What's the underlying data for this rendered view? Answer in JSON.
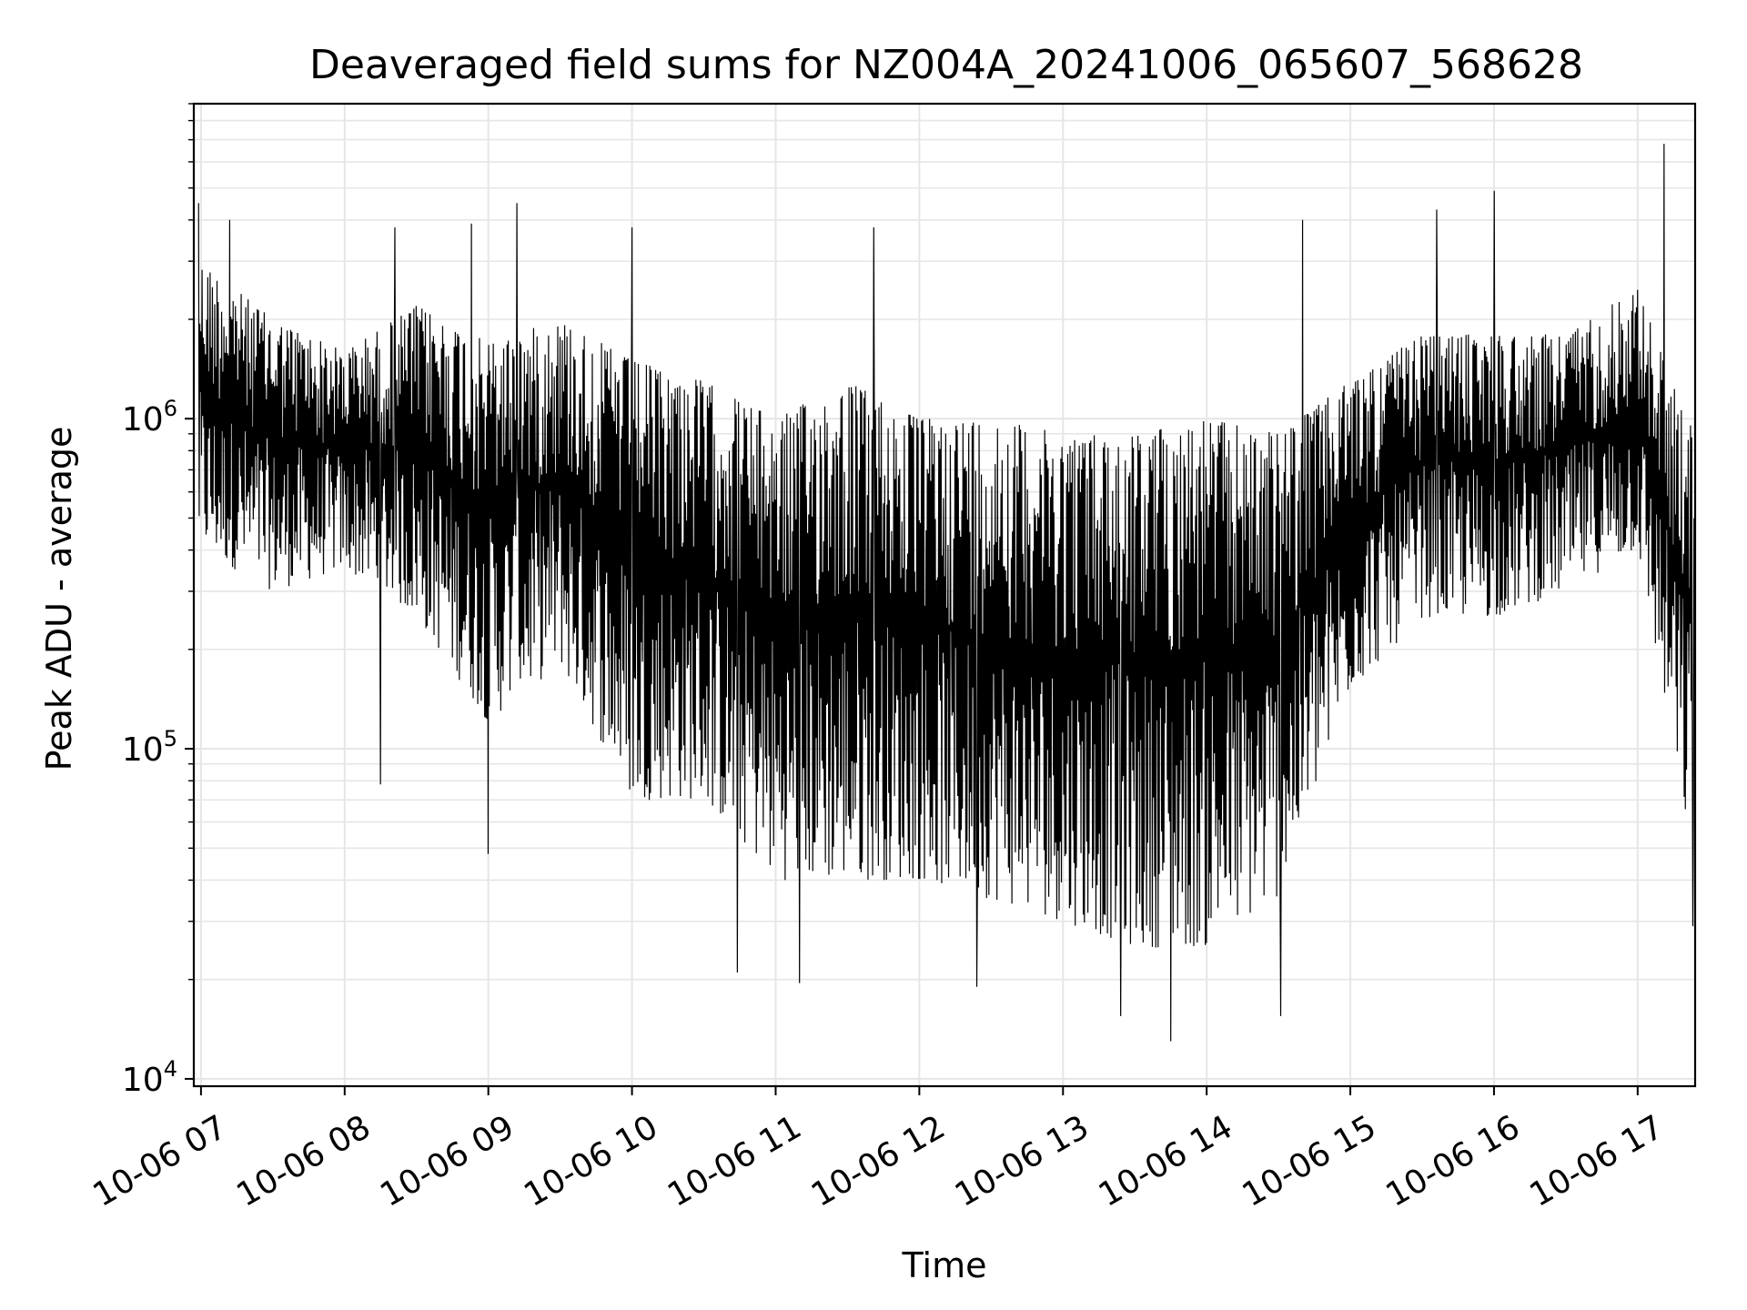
{
  "chart_data": {
    "type": "line",
    "title": "Deaveraged field sums for NZ004A_20241006_065607_568628",
    "xlabel": "Time",
    "ylabel": "Peak ADU - average",
    "yscale": "log",
    "ylim": [
      9500,
      9000000
    ],
    "xlim": [
      "2024-10-06 06:57",
      "2024-10-06 17:24"
    ],
    "x_ticks": [
      "10-06 07",
      "10-06 08",
      "10-06 09",
      "10-06 10",
      "10-06 11",
      "10-06 12",
      "10-06 13",
      "10-06 14",
      "10-06 15",
      "10-06 16",
      "10-06 17"
    ],
    "y_ticks": [
      {
        "base": "10",
        "exp": "4",
        "value": 10000
      },
      {
        "base": "10",
        "exp": "5",
        "value": 100000
      },
      {
        "base": "10",
        "exp": "6",
        "value": 1000000
      }
    ],
    "grid": true,
    "line_color": "#000000",
    "grid_color": "#e6e6e6",
    "series": [
      {
        "x": [
          "07:00",
          "07:30",
          "08:00",
          "08:30",
          "09:00",
          "09:30",
          "10:00",
          "10:30",
          "11:00",
          "11:30",
          "12:00",
          "12:30",
          "13:00",
          "13:30",
          "14:00",
          "14:30",
          "15:00",
          "15:30",
          "16:00",
          "16:30",
          "17:00",
          "17:20"
        ],
        "upper": [
          3000000,
          2000000,
          1600000,
          2200000,
          1700000,
          2000000,
          1500000,
          1300000,
          1000000,
          1300000,
          1000000,
          1000000,
          900000,
          900000,
          1000000,
          900000,
          1300000,
          1800000,
          1800000,
          1800000,
          2500000,
          1000000
        ],
        "lower": [
          400000,
          300000,
          350000,
          250000,
          120000,
          180000,
          70000,
          70000,
          40000,
          40000,
          40000,
          35000,
          30000,
          25000,
          25000,
          35000,
          150000,
          250000,
          250000,
          300000,
          400000,
          60000
        ],
        "peaks": [
          {
            "x": "06:59",
            "y": 4500000
          },
          {
            "x": "07:12",
            "y": 4000000
          },
          {
            "x": "08:21",
            "y": 3800000
          },
          {
            "x": "08:53",
            "y": 3900000
          },
          {
            "x": "09:12",
            "y": 4500000
          },
          {
            "x": "10:00",
            "y": 3800000
          },
          {
            "x": "11:41",
            "y": 3800000
          },
          {
            "x": "14:40",
            "y": 4000000
          },
          {
            "x": "15:36",
            "y": 4300000
          },
          {
            "x": "16:00",
            "y": 4900000
          },
          {
            "x": "17:11",
            "y": 6800000
          }
        ],
        "troughs": [
          {
            "x": "08:15",
            "y": 78000
          },
          {
            "x": "09:00",
            "y": 48000
          },
          {
            "x": "10:44",
            "y": 21000
          },
          {
            "x": "11:10",
            "y": 19500
          },
          {
            "x": "12:24",
            "y": 19000
          },
          {
            "x": "13:24",
            "y": 15500
          },
          {
            "x": "13:45",
            "y": 13000
          },
          {
            "x": "14:31",
            "y": 15500
          },
          {
            "x": "17:23",
            "y": 29000
          }
        ]
      }
    ]
  }
}
